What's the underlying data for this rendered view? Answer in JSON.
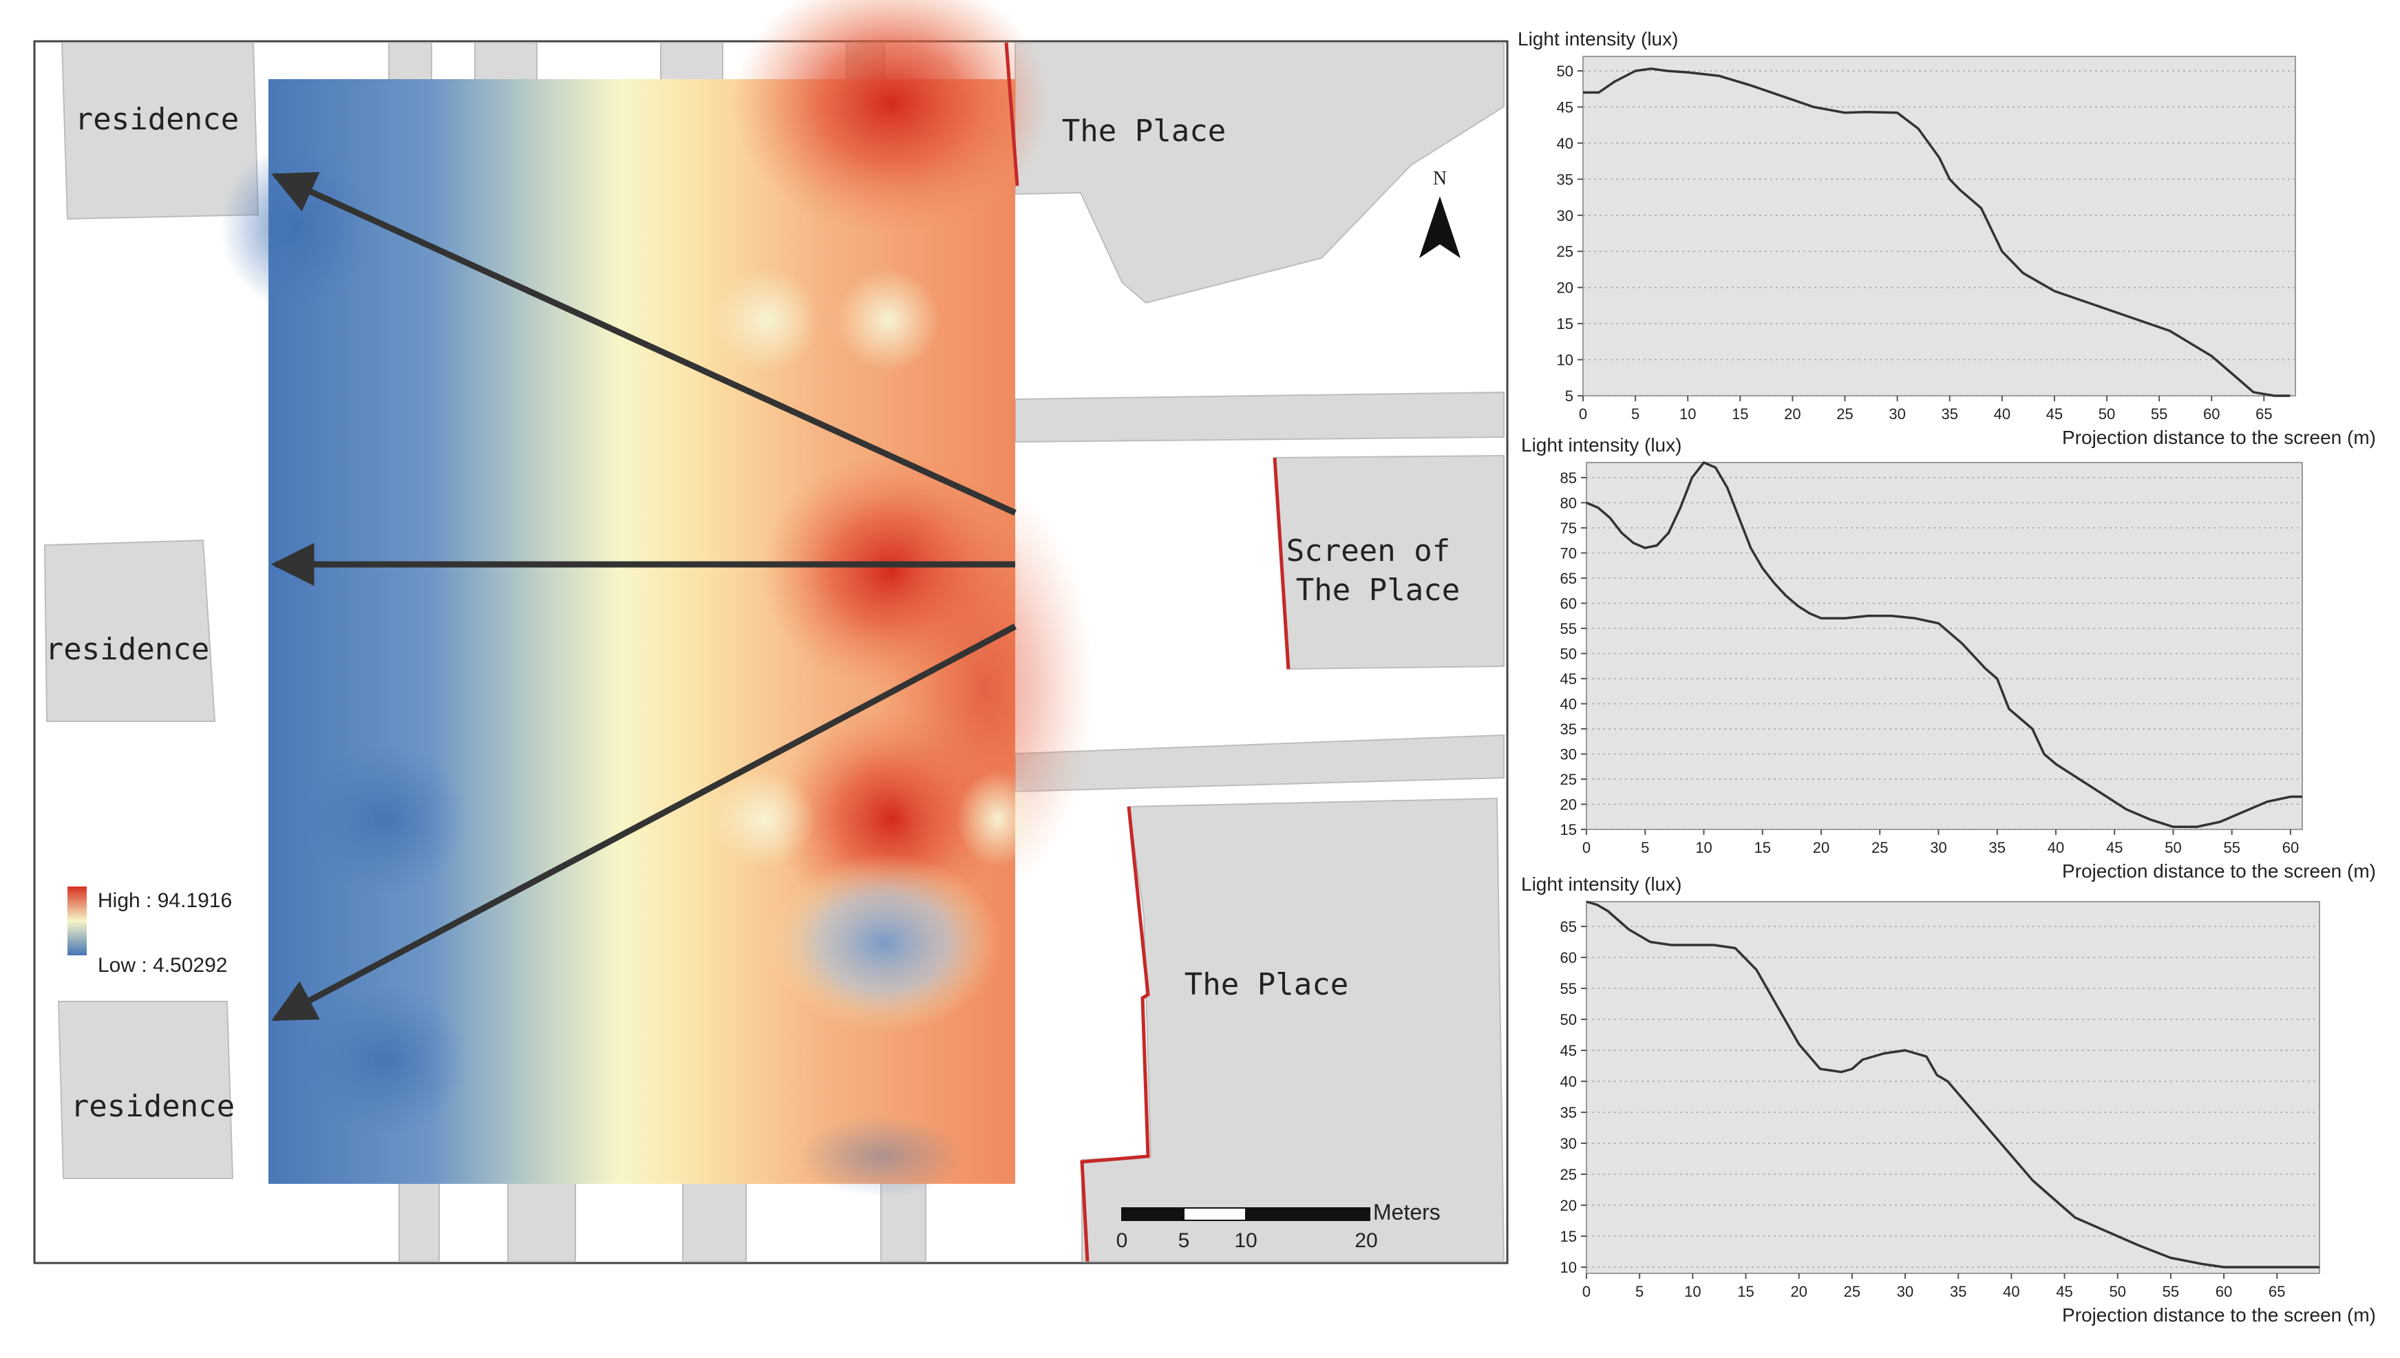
{
  "map": {
    "labels": {
      "residence_top": "residence",
      "residence_mid": "residence",
      "residence_bottom": "residence",
      "place_top": "The Place",
      "screen_line1": "Screen of",
      "screen_line2": "The Place",
      "place_bottom": "The Place"
    },
    "legend": {
      "high": "High : 94.1916",
      "low": "Low : 4.50292"
    },
    "north": "N",
    "scale": {
      "unit": "Meters",
      "ticks": [
        "0",
        "5",
        "10",
        "20"
      ]
    },
    "colors": {
      "high": "#d7301f",
      "mid": "#f7f6c8",
      "low": "#4575b4",
      "building": "#d9d9d9",
      "screen_line": "#c62828"
    }
  },
  "chart_data": [
    {
      "type": "line",
      "ylabel": "Light intensity (lux)",
      "xlabel": "Projection distance to the screen (m)",
      "xlim": [
        0,
        68
      ],
      "ylim": [
        5,
        52
      ],
      "xticks": [
        0,
        5,
        10,
        15,
        20,
        25,
        30,
        35,
        40,
        45,
        50,
        55,
        60,
        65
      ],
      "yticks": [
        5,
        10,
        15,
        20,
        25,
        30,
        35,
        40,
        45,
        50
      ],
      "series": [
        {
          "x": [
            0,
            1.5,
            3,
            5,
            6.5,
            8,
            10,
            13,
            16,
            19,
            22,
            25,
            27,
            30,
            32,
            33,
            34,
            35,
            36,
            38,
            40,
            42,
            45,
            48,
            50,
            53,
            56,
            60,
            62,
            64,
            66,
            67.5
          ],
          "y": [
            47,
            47,
            48.5,
            50,
            50.3,
            50,
            49.8,
            49.3,
            48,
            46.5,
            45,
            44.2,
            44.3,
            44.2,
            42,
            40,
            38,
            35,
            33.5,
            31,
            25,
            22,
            19.5,
            18,
            17,
            15.5,
            14,
            10.5,
            8,
            5.5,
            5,
            5
          ]
        }
      ]
    },
    {
      "type": "line",
      "ylabel": "Light intensity (lux)",
      "xlabel": "Projection distance to the screen (m)",
      "xlim": [
        0,
        61
      ],
      "ylim": [
        15,
        88
      ],
      "xticks": [
        0,
        5,
        10,
        15,
        20,
        25,
        30,
        35,
        40,
        45,
        50,
        55,
        60
      ],
      "yticks": [
        15,
        20,
        25,
        30,
        35,
        40,
        45,
        50,
        55,
        60,
        65,
        70,
        75,
        80,
        85
      ],
      "series": [
        {
          "x": [
            0,
            1,
            2,
            3,
            4,
            5,
            6,
            7,
            8,
            9,
            10,
            11,
            12,
            13,
            14,
            15,
            16,
            17,
            18,
            19,
            20,
            22,
            24,
            26,
            28,
            30,
            32,
            34,
            35,
            36,
            38,
            39,
            40,
            42,
            44,
            46,
            48,
            50,
            52,
            54,
            56,
            58,
            60,
            61
          ],
          "y": [
            80,
            79,
            77,
            74,
            72,
            71,
            71.5,
            74,
            79,
            85,
            88,
            87,
            83,
            77,
            71,
            67,
            64,
            61.5,
            59.5,
            58,
            57,
            57,
            57.5,
            57.5,
            57,
            56,
            52,
            47,
            45,
            39,
            35,
            30,
            28,
            25,
            22,
            19,
            17,
            15.5,
            15.5,
            16.5,
            18.5,
            20.5,
            21.5,
            21.5
          ]
        }
      ]
    },
    {
      "type": "line",
      "ylabel": "Light intensity (lux)",
      "xlabel": "Projection distance to the screen (m)",
      "xlim": [
        0,
        69
      ],
      "ylim": [
        9,
        69
      ],
      "xticks": [
        0,
        5,
        10,
        15,
        20,
        25,
        30,
        35,
        40,
        45,
        50,
        55,
        60,
        65
      ],
      "yticks": [
        10,
        15,
        20,
        25,
        30,
        35,
        40,
        45,
        50,
        55,
        60,
        65
      ],
      "series": [
        {
          "x": [
            0,
            1,
            2,
            3,
            4,
            5,
            6,
            8,
            10,
            12,
            14,
            16,
            18,
            20,
            22,
            24,
            25,
            26,
            28,
            30,
            32,
            33,
            34,
            35,
            36,
            38,
            40,
            42,
            44,
            46,
            48,
            50,
            52,
            55,
            58,
            60,
            62,
            64,
            66,
            68,
            69
          ],
          "y": [
            69,
            68.5,
            67.5,
            66,
            64.5,
            63.5,
            62.5,
            62,
            62,
            62,
            61.5,
            58,
            52,
            46,
            42,
            41.5,
            42,
            43.5,
            44.5,
            45,
            44,
            41,
            40,
            38,
            36,
            32,
            28,
            24,
            21,
            18,
            16.5,
            15,
            13.5,
            11.5,
            10.5,
            10,
            10,
            10,
            10,
            10,
            10
          ]
        }
      ]
    }
  ]
}
